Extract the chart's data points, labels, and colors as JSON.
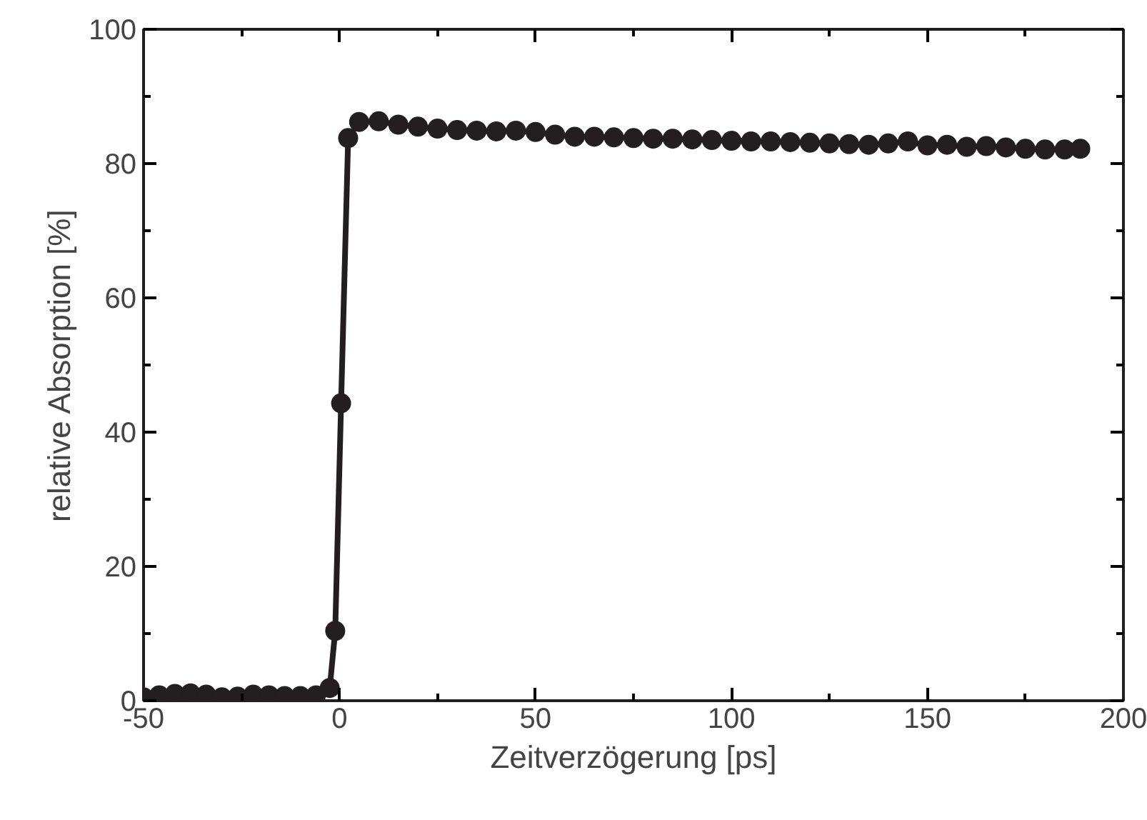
{
  "chart_data": {
    "type": "line",
    "xlabel": "Zeitverzögerung [ps]",
    "ylabel": "relative Absorption [%]",
    "xlim": [
      -50,
      200
    ],
    "xticks": [
      -50,
      0,
      50,
      100,
      150,
      200
    ],
    "ylim": [
      0,
      100
    ],
    "yticks": [
      0,
      20,
      40,
      60,
      80,
      100
    ],
    "grid": false,
    "marker": "circle",
    "line_style": "solid",
    "series": [
      {
        "color": "#231f20",
        "x": [
          -50,
          -46,
          -42,
          -38,
          -34,
          -30,
          -26,
          -22,
          -18,
          -14,
          -10,
          -6,
          -2.5,
          -1.1,
          0.4,
          2.2,
          5,
          10,
          15,
          20,
          25,
          30,
          35,
          40,
          45,
          50,
          55,
          60,
          65,
          70,
          75,
          80,
          85,
          90,
          95,
          100,
          105,
          110,
          115,
          120,
          125,
          130,
          135,
          140,
          145,
          150,
          155,
          160,
          165,
          170,
          175,
          180,
          185,
          189
        ],
        "values": [
          0.5,
          0.8,
          1.0,
          1.1,
          0.9,
          0.5,
          0.6,
          0.9,
          0.8,
          0.7,
          0.7,
          0.8,
          1.9,
          10.4,
          44.3,
          83.8,
          86.2,
          86.3,
          85.8,
          85.5,
          85.2,
          85.0,
          84.9,
          84.8,
          84.9,
          84.7,
          84.3,
          84.0,
          84.0,
          83.9,
          83.8,
          83.7,
          83.7,
          83.6,
          83.5,
          83.4,
          83.3,
          83.3,
          83.2,
          83.1,
          83.0,
          82.9,
          82.8,
          83.0,
          83.3,
          82.7,
          82.8,
          82.5,
          82.6,
          82.4,
          82.2,
          82.1,
          82.1,
          82.2
        ]
      }
    ]
  }
}
